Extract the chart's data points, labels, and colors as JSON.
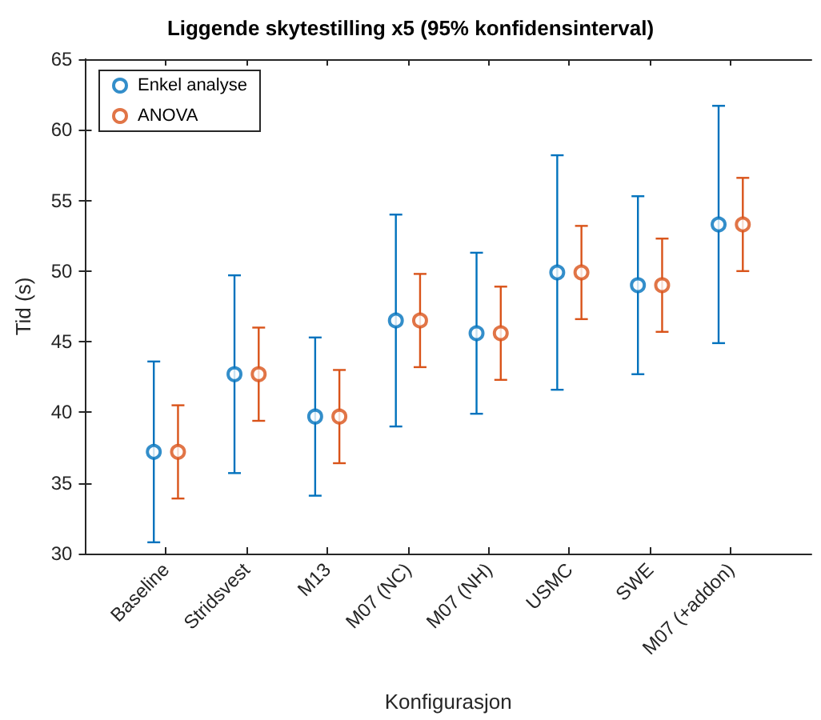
{
  "chart_data": {
    "type": "scatter",
    "title": "Liggende skytestilling x5 (95% konfidensinterval)",
    "xlabel": "Konfigurasjon",
    "ylabel": "Tid (s)",
    "categories": [
      "Baseline",
      "Stridsvest",
      "M13",
      "M07 (NC)",
      "M07 (NH)",
      "USMC",
      "SWE",
      "M07 (+addon)"
    ],
    "series": [
      {
        "name": "Enkel analyse",
        "color": "#0072bd",
        "values": [
          37.2,
          42.7,
          39.7,
          46.5,
          45.6,
          49.9,
          49.0,
          53.3
        ],
        "errors": [
          6.4,
          7.0,
          5.6,
          7.5,
          5.7,
          8.3,
          6.3,
          8.4
        ]
      },
      {
        "name": "ANOVA",
        "color": "#d95319",
        "values": [
          37.2,
          42.7,
          39.7,
          46.5,
          45.6,
          49.9,
          49.0,
          53.3
        ],
        "errors": [
          3.3,
          3.3,
          3.3,
          3.3,
          3.3,
          3.3,
          3.3,
          3.3
        ]
      }
    ],
    "ylim": [
      30,
      65
    ],
    "yticks": [
      30,
      35,
      40,
      45,
      50,
      55,
      60,
      65
    ],
    "grid": false,
    "legend": "top left",
    "marker": "circle"
  }
}
